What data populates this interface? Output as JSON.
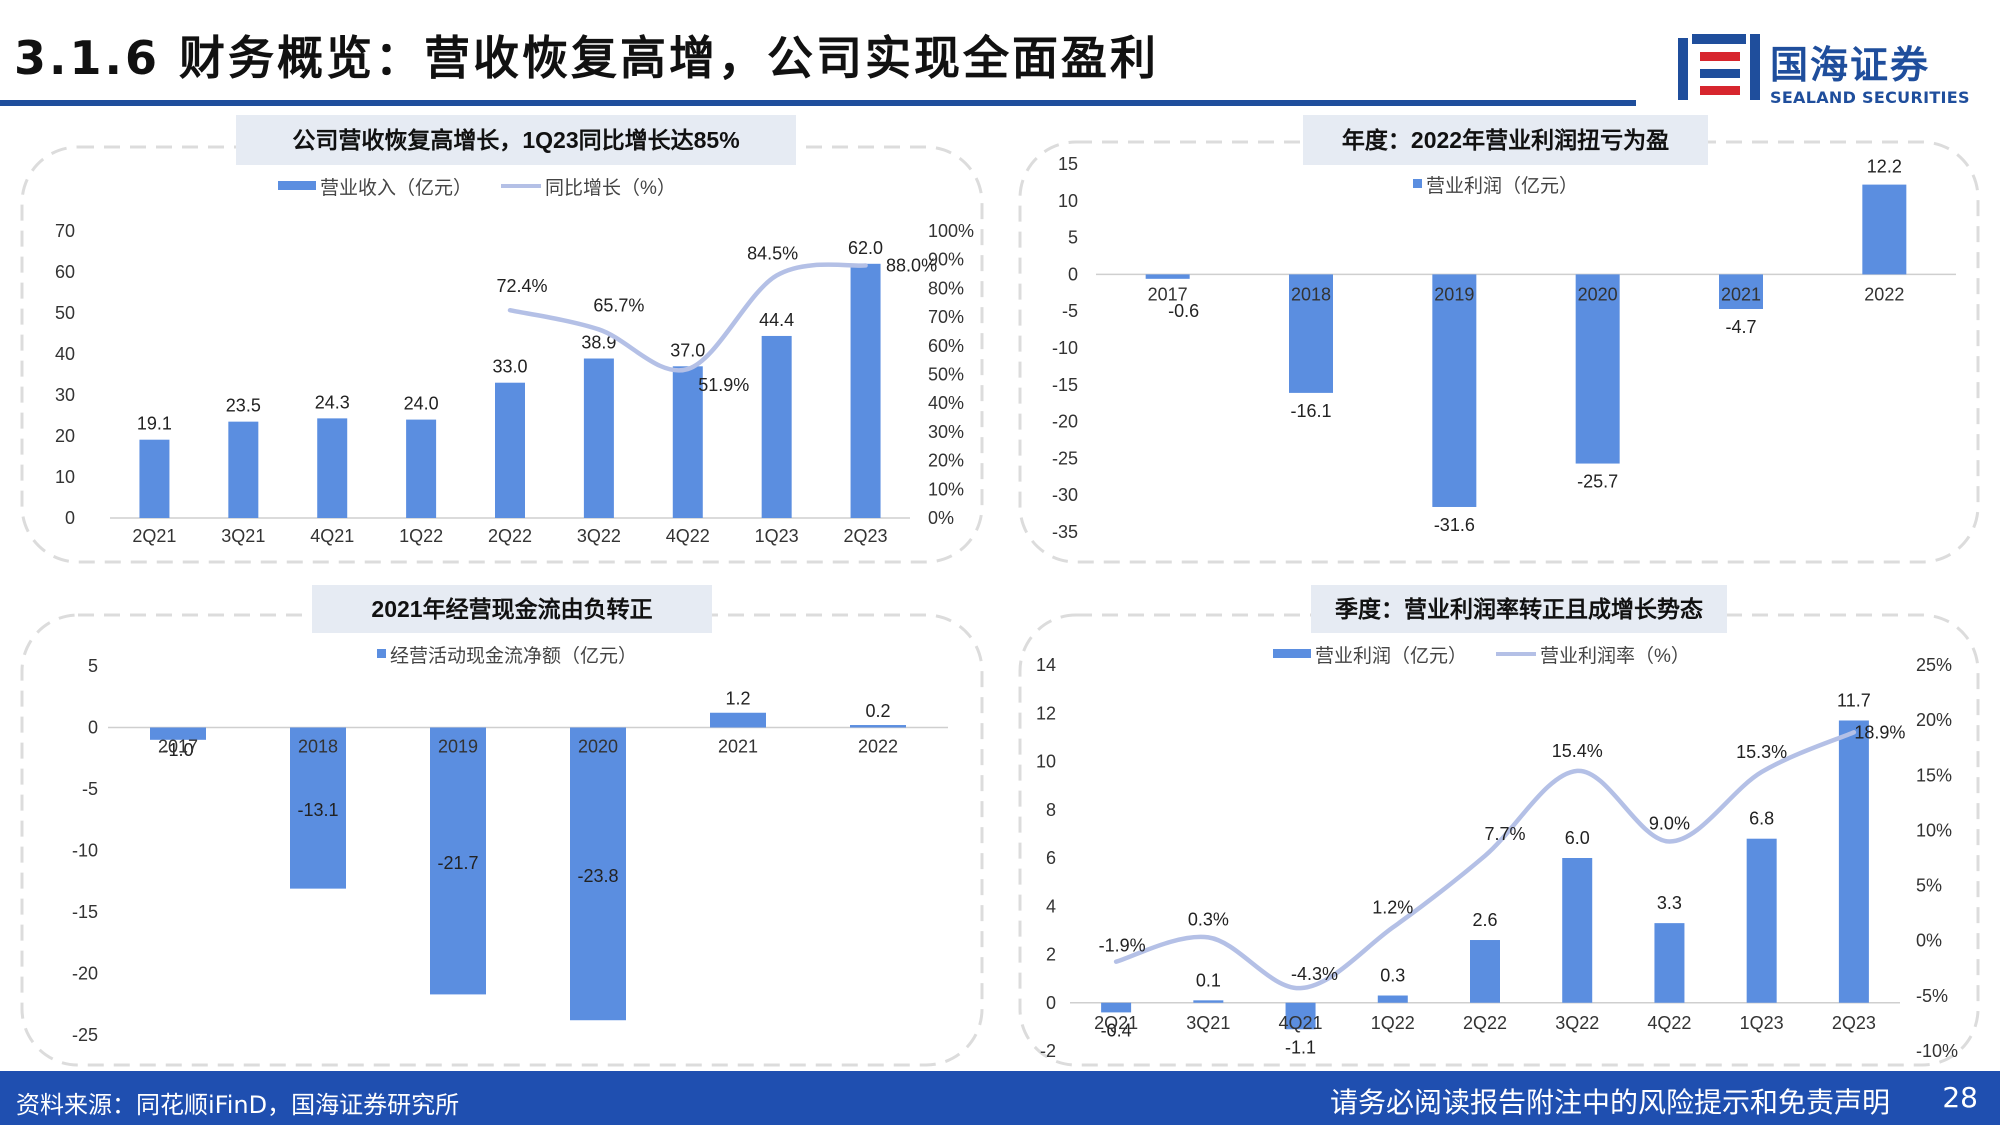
{
  "title": "3.1.6 财务概览：营收恢复高增，公司实现全面盈利",
  "logo": {
    "cn": "国海证券",
    "en": "SEALAND SECURITIES"
  },
  "footer": {
    "source": "资料来源：同花顺iFinD，国海证券研究所",
    "disclaimer": "请务必阅读报告附注中的风险提示和免责声明",
    "page": "28"
  },
  "colors": {
    "bar": "#5b8ee0",
    "line": "#b4c0e6",
    "header_bg": "#e6ebf3",
    "frame": "#dcdcdc",
    "title_rule": "#1f4e9c",
    "footer_bg": "#1f4fb0"
  },
  "chart_data": [
    {
      "type": "bar",
      "title": "公司营收恢复高增长，1Q23同比增长达85%",
      "categories": [
        "2Q21",
        "3Q21",
        "4Q21",
        "1Q22",
        "2Q22",
        "3Q22",
        "4Q22",
        "1Q23",
        "2Q23"
      ],
      "series": [
        {
          "name": "营业收入（亿元）",
          "type": "bar",
          "axis": "left",
          "values": [
            19.1,
            23.5,
            24.3,
            24.0,
            33.0,
            38.9,
            37.0,
            44.4,
            62.0
          ],
          "labels": [
            "19.1",
            "23.5",
            "24.3",
            "24.0",
            "33.0",
            "38.9",
            "37.0",
            "44.4",
            "62.0"
          ]
        },
        {
          "name": "同比增长（%）",
          "type": "line",
          "axis": "right",
          "values": [
            null,
            null,
            null,
            null,
            72.4,
            65.7,
            51.9,
            84.5,
            88.0
          ],
          "labels": [
            null,
            null,
            null,
            null,
            "72.4%",
            "65.7%",
            "51.9%",
            "84.5%",
            "88.0%"
          ]
        }
      ],
      "ylim": [
        0,
        70
      ],
      "y_ticks": [
        "0",
        "10",
        "20",
        "30",
        "40",
        "50",
        "60",
        "70"
      ],
      "y2lim": [
        0,
        100
      ],
      "y2_ticks": [
        "0%",
        "10%",
        "20%",
        "30%",
        "40%",
        "50%",
        "60%",
        "70%",
        "80%",
        "90%",
        "100%"
      ],
      "legend": "top",
      "grid": false
    },
    {
      "type": "bar",
      "title": "年度：2022年营业利润扭亏为盈",
      "categories": [
        "2017",
        "2018",
        "2019",
        "2020",
        "2021",
        "2022"
      ],
      "series": [
        {
          "name": "营业利润（亿元）",
          "values": [
            -0.6,
            -16.1,
            -31.6,
            -25.7,
            -4.7,
            12.2
          ],
          "labels": [
            "-0.6",
            "-16.1",
            "-31.6",
            "-25.7",
            "-4.7",
            "12.2"
          ]
        }
      ],
      "ylim": [
        -35,
        15
      ],
      "y_ticks": [
        "-35",
        "-30",
        "-25",
        "-20",
        "-15",
        "-10",
        "-5",
        "0",
        "5",
        "10",
        "15"
      ],
      "legend": "top",
      "grid": false
    },
    {
      "type": "bar",
      "title": "2021年经营现金流由负转正",
      "categories": [
        "2017",
        "2018",
        "2019",
        "2020",
        "2021",
        "2022"
      ],
      "series": [
        {
          "name": "经营活动现金流净额（亿元）",
          "values": [
            -1.0,
            -13.1,
            -21.7,
            -23.8,
            1.2,
            0.2
          ],
          "labels": [
            "-1.0",
            "-13.1",
            "-21.7",
            "-23.8",
            "1.2",
            "0.2"
          ]
        }
      ],
      "ylim": [
        -25,
        5
      ],
      "y_ticks": [
        "-25",
        "-20",
        "-15",
        "-10",
        "-5",
        "0",
        "5"
      ],
      "legend": "top",
      "grid": false
    },
    {
      "type": "bar",
      "title": "季度：营业利润率转正且成增长势态",
      "categories": [
        "2Q21",
        "3Q21",
        "4Q21",
        "1Q22",
        "2Q22",
        "3Q22",
        "4Q22",
        "1Q23",
        "2Q23"
      ],
      "series": [
        {
          "name": "营业利润（亿元）",
          "type": "bar",
          "axis": "left",
          "values": [
            -0.4,
            0.1,
            -1.1,
            0.3,
            2.6,
            6.0,
            3.3,
            6.8,
            11.7
          ],
          "labels": [
            "-0.4",
            "0.1",
            "-1.1",
            "0.3",
            "2.6",
            "6.0",
            "3.3",
            "6.8",
            "11.7"
          ]
        },
        {
          "name": "营业利润率（%）",
          "type": "line",
          "axis": "right",
          "values": [
            -1.9,
            0.3,
            -4.3,
            1.2,
            7.7,
            15.4,
            9.0,
            15.3,
            18.9
          ],
          "labels": [
            "-1.9%",
            "0.3%",
            "-4.3%",
            "1.2%",
            "7.7%",
            "15.4%",
            "9.0%",
            "15.3%",
            "18.9%"
          ]
        }
      ],
      "ylim": [
        -2,
        14
      ],
      "y_ticks": [
        "-2",
        "0",
        "2",
        "4",
        "6",
        "8",
        "10",
        "12",
        "14"
      ],
      "y2lim": [
        -10,
        25
      ],
      "y2_ticks": [
        "-10%",
        "-5%",
        "0%",
        "5%",
        "10%",
        "15%",
        "20%",
        "25%"
      ],
      "legend": "top",
      "grid": false
    }
  ]
}
